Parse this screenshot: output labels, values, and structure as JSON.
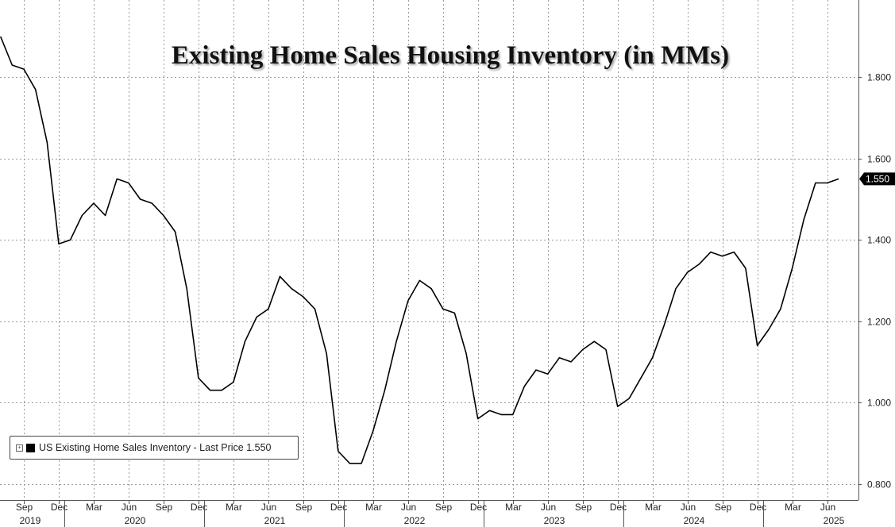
{
  "chart_data": {
    "type": "line",
    "title": "Existing Home Sales Housing Inventory (in MMs)",
    "xlabel": "",
    "ylabel": "",
    "ylim": [
      0.76,
      1.99
    ],
    "y_ticks": [
      "0.800",
      "1.000",
      "1.200",
      "1.400",
      "1.600",
      "1.800"
    ],
    "grid": true,
    "legend_position": "bottom-left",
    "last_value_label": "1.550",
    "x_ticks": [
      {
        "date": "2019-09",
        "label": "Sep"
      },
      {
        "date": "2019-12",
        "label": "Dec"
      },
      {
        "date": "2020-03",
        "label": "Mar"
      },
      {
        "date": "2020-06",
        "label": "Jun"
      },
      {
        "date": "2020-09",
        "label": "Sep"
      },
      {
        "date": "2020-12",
        "label": "Dec"
      },
      {
        "date": "2021-03",
        "label": "Mar"
      },
      {
        "date": "2021-06",
        "label": "Jun"
      },
      {
        "date": "2021-09",
        "label": "Sep"
      },
      {
        "date": "2021-12",
        "label": "Dec"
      },
      {
        "date": "2022-03",
        "label": "Mar"
      },
      {
        "date": "2022-06",
        "label": "Jun"
      },
      {
        "date": "2022-09",
        "label": "Sep"
      },
      {
        "date": "2022-12",
        "label": "Dec"
      },
      {
        "date": "2023-03",
        "label": "Mar"
      },
      {
        "date": "2023-06",
        "label": "Jun"
      },
      {
        "date": "2023-09",
        "label": "Sep"
      },
      {
        "date": "2023-12",
        "label": "Dec"
      },
      {
        "date": "2024-03",
        "label": "Mar"
      },
      {
        "date": "2024-06",
        "label": "Jun"
      },
      {
        "date": "2024-09",
        "label": "Sep"
      },
      {
        "date": "2024-12",
        "label": "Dec"
      },
      {
        "date": "2025-03",
        "label": "Mar"
      },
      {
        "date": "2025-06",
        "label": "Jun"
      }
    ],
    "year_labels": [
      {
        "date": "2019-09",
        "label": "2019"
      },
      {
        "date": "2020-06",
        "label": "2020"
      },
      {
        "date": "2021-06",
        "label": "2021"
      },
      {
        "date": "2022-06",
        "label": "2022"
      },
      {
        "date": "2023-06",
        "label": "2023"
      },
      {
        "date": "2024-06",
        "label": "2024"
      },
      {
        "date": "2025-06",
        "label": "2025"
      }
    ],
    "series": [
      {
        "name": "US Existing Home Sales Inventory",
        "color": "#000000",
        "x": [
          "2019-07",
          "2019-08",
          "2019-09",
          "2019-10",
          "2019-11",
          "2019-12",
          "2020-01",
          "2020-02",
          "2020-03",
          "2020-04",
          "2020-05",
          "2020-06",
          "2020-07",
          "2020-08",
          "2020-09",
          "2020-10",
          "2020-11",
          "2020-12",
          "2021-01",
          "2021-02",
          "2021-03",
          "2021-04",
          "2021-05",
          "2021-06",
          "2021-07",
          "2021-08",
          "2021-09",
          "2021-10",
          "2021-11",
          "2021-12",
          "2022-01",
          "2022-02",
          "2022-03",
          "2022-04",
          "2022-05",
          "2022-06",
          "2022-07",
          "2022-08",
          "2022-09",
          "2022-10",
          "2022-11",
          "2022-12",
          "2023-01",
          "2023-02",
          "2023-03",
          "2023-04",
          "2023-05",
          "2023-06",
          "2023-07",
          "2023-08",
          "2023-09",
          "2023-10",
          "2023-11",
          "2023-12",
          "2024-01",
          "2024-02",
          "2024-03",
          "2024-04",
          "2024-05",
          "2024-06",
          "2024-07",
          "2024-08",
          "2024-09",
          "2024-10",
          "2024-11",
          "2024-12",
          "2025-01",
          "2025-02",
          "2025-03",
          "2025-04",
          "2025-05",
          "2025-06",
          "2025-07"
        ],
        "values": [
          1.9,
          1.83,
          1.82,
          1.77,
          1.64,
          1.39,
          1.4,
          1.46,
          1.49,
          1.46,
          1.55,
          1.54,
          1.5,
          1.49,
          1.46,
          1.42,
          1.28,
          1.06,
          1.03,
          1.03,
          1.05,
          1.15,
          1.21,
          1.23,
          1.31,
          1.28,
          1.26,
          1.23,
          1.12,
          0.88,
          0.85,
          0.85,
          0.93,
          1.03,
          1.15,
          1.25,
          1.3,
          1.28,
          1.23,
          1.22,
          1.12,
          0.96,
          0.98,
          0.97,
          0.97,
          1.04,
          1.08,
          1.07,
          1.11,
          1.1,
          1.13,
          1.15,
          1.13,
          0.99,
          1.01,
          1.06,
          1.11,
          1.19,
          1.28,
          1.32,
          1.34,
          1.37,
          1.36,
          1.37,
          1.33,
          1.14,
          1.18,
          1.23,
          1.33,
          1.45,
          1.54,
          1.54,
          1.55
        ]
      }
    ]
  },
  "legend": {
    "label": "US Existing Home Sales Inventory - Last Price 1.550"
  }
}
